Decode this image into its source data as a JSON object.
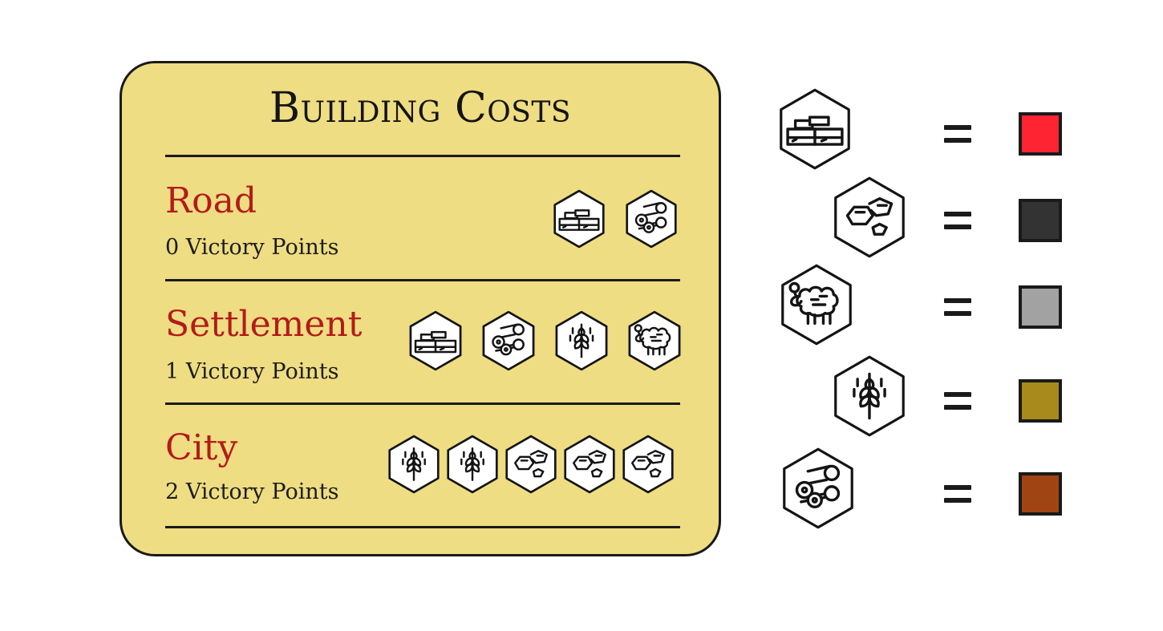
{
  "card": {
    "title": "Building Costs",
    "rows": [
      {
        "name": "Road",
        "victory_points": "0 Victory Points",
        "cost": [
          "brick-icon",
          "lumber-icon"
        ]
      },
      {
        "name": "Settlement",
        "victory_points": "1 Victory Points",
        "cost": [
          "brick-icon",
          "lumber-icon",
          "grain-icon",
          "wool-icon"
        ]
      },
      {
        "name": "City",
        "victory_points": "2 Victory Points",
        "cost": [
          "grain-icon",
          "grain-icon",
          "ore-icon",
          "ore-icon",
          "ore-icon"
        ]
      }
    ],
    "colors": {
      "background": "#eedd82",
      "row_name": "#b31b1b"
    }
  },
  "legend": {
    "items": [
      {
        "resource_icon": "brick-icon",
        "symbol": "=",
        "color": "#ff2432"
      },
      {
        "resource_icon": "ore-icon",
        "symbol": "=",
        "color": "#333333"
      },
      {
        "resource_icon": "wool-icon",
        "symbol": "=",
        "color": "#a2a2a2"
      },
      {
        "resource_icon": "grain-icon",
        "symbol": "=",
        "color": "#a88a1c"
      },
      {
        "resource_icon": "lumber-icon",
        "symbol": "=",
        "color": "#a04414"
      }
    ]
  }
}
